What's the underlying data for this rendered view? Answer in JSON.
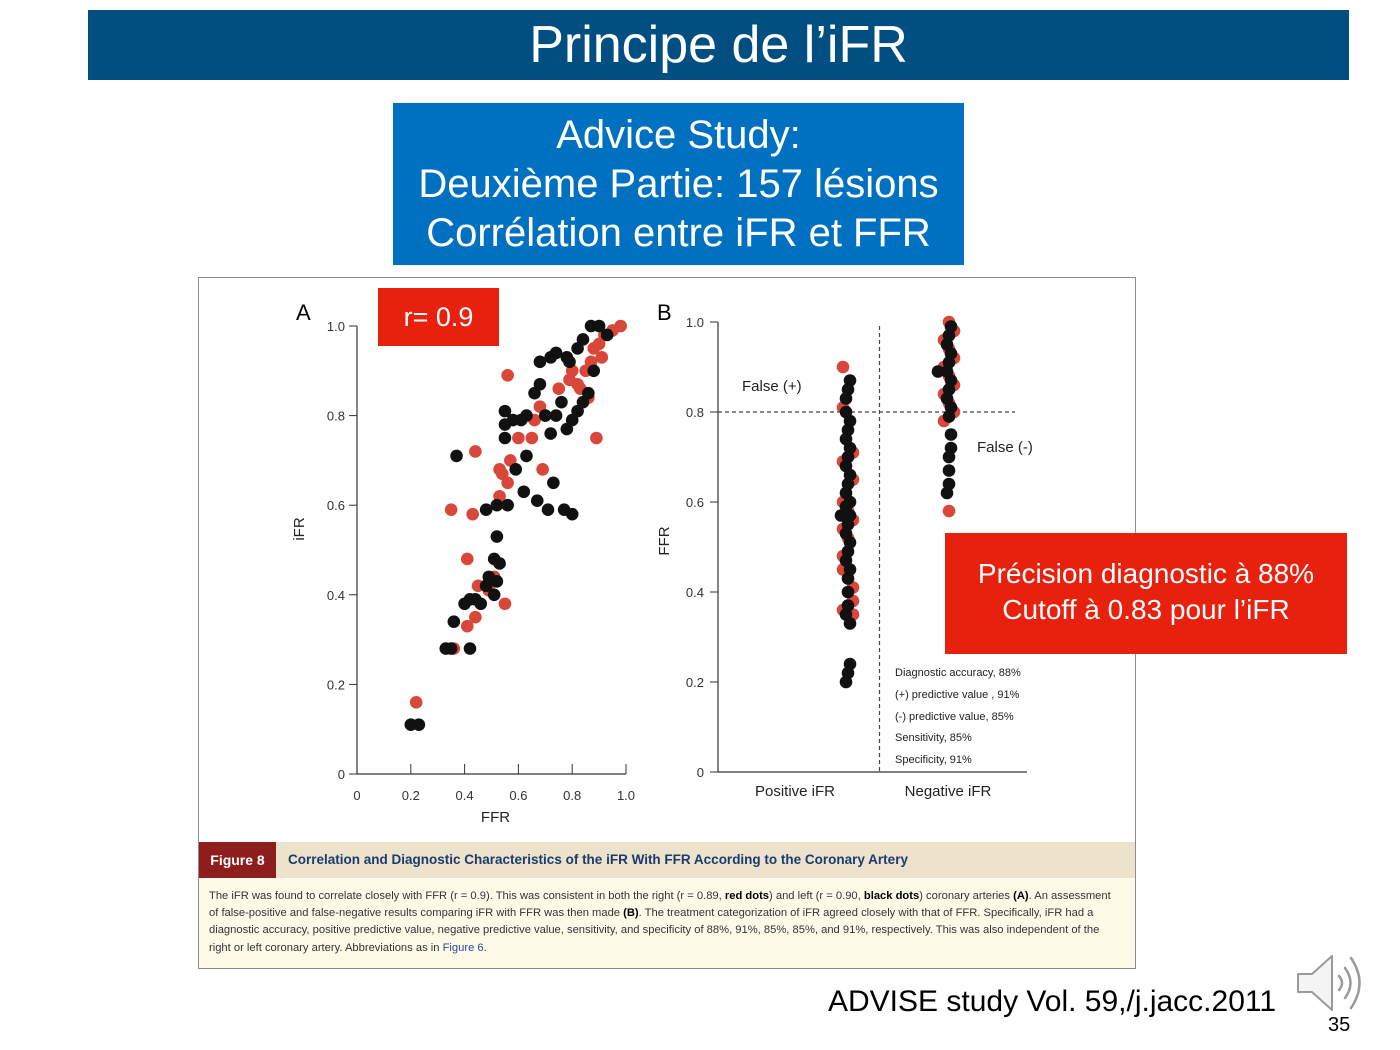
{
  "slide": {
    "title": "Principe  de l’iFR",
    "study_box": {
      "line1": "Advice Study:",
      "line2": "Deuxième Partie: 157 lésions",
      "line3": "Corrélation entre iFR et FFR"
    },
    "r_callout": "r= 0.9",
    "precision_callout": {
      "line1": "Précision diagnostic à 88%",
      "line2": "Cutoff à 0.83 pour l’iFR"
    },
    "citation": "ADVISE study Vol. 59,/j.jacc.2011",
    "page_number": "35",
    "icons": {
      "speaker": "speaker-icon"
    },
    "colors": {
      "title_bar": "#004f80",
      "study_box": "#0070c0",
      "callout_red": "#e8200e",
      "red_dots": "#d9473a",
      "black_dots": "#111111"
    }
  },
  "figure": {
    "caption_tag": "Figure 8",
    "caption_title": "Correlation and Diagnostic Characteristics of the iFR With FFR According to the Coronary Artery",
    "caption_body": {
      "p1": "The iFR was found to correlate closely with FFR (r = 0.9). This was consistent in both the right (r = 0.89, ",
      "red_dots": "red dots",
      "p2": ") and left (r = 0.90, ",
      "black_dots": "black dots",
      "p3": ") coronary arteries ",
      "ref_a": "(A)",
      "p4": ". An assessment of false-positive and false-negative results comparing iFR with FFR was then made ",
      "ref_b": "(B)",
      "p5": ". The treatment categorization of iFR agreed closely with that of FFR. Specifically, iFR had a diagnostic accuracy, positive predictive value, negative predictive value, sensitivity, and specificity of 88%, 91%, 85%, 85%, and 91%, respectively. This was also independent of the right or left coronary artery. Abbreviations as in ",
      "link": "Figure 6",
      "p6": "."
    }
  },
  "chart_data": [
    {
      "type": "scatter",
      "panel_label": "A",
      "xlabel": "FFR",
      "ylabel": "iFR",
      "xlim": [
        0,
        1.0
      ],
      "ylim": [
        0,
        1.0
      ],
      "x_ticks": [
        "0",
        "0.2",
        "0.4",
        "0.6",
        "0.8",
        "1.0"
      ],
      "y_ticks": [
        "0",
        "0.2",
        "0.4",
        "0.6",
        "0.8",
        "1.0"
      ],
      "series": [
        {
          "name": "right coronary (red dots)",
          "color": "#d9473a",
          "points": [
            [
              0.22,
              0.16
            ],
            [
              0.36,
              0.28
            ],
            [
              0.41,
              0.33
            ],
            [
              0.44,
              0.35
            ],
            [
              0.49,
              0.41
            ],
            [
              0.55,
              0.38
            ],
            [
              0.45,
              0.42
            ],
            [
              0.51,
              0.44
            ],
            [
              0.41,
              0.48
            ],
            [
              0.35,
              0.59
            ],
            [
              0.43,
              0.58
            ],
            [
              0.53,
              0.62
            ],
            [
              0.56,
              0.65
            ],
            [
              0.54,
              0.67
            ],
            [
              0.57,
              0.7
            ],
            [
              0.53,
              0.68
            ],
            [
              0.44,
              0.72
            ],
            [
              0.69,
              0.68
            ],
            [
              0.6,
              0.75
            ],
            [
              0.65,
              0.75
            ],
            [
              0.66,
              0.79
            ],
            [
              0.56,
              0.89
            ],
            [
              0.68,
              0.82
            ],
            [
              0.7,
              0.8
            ],
            [
              0.75,
              0.86
            ],
            [
              0.79,
              0.88
            ],
            [
              0.82,
              0.87
            ],
            [
              0.85,
              0.9
            ],
            [
              0.87,
              0.92
            ],
            [
              0.88,
              0.95
            ],
            [
              0.9,
              0.96
            ],
            [
              0.92,
              0.98
            ],
            [
              0.95,
              0.99
            ],
            [
              0.98,
              1.0
            ],
            [
              0.89,
              0.75
            ],
            [
              0.83,
              0.86
            ],
            [
              0.86,
              0.84
            ],
            [
              0.91,
              0.93
            ],
            [
              0.8,
              0.9
            ]
          ]
        },
        {
          "name": "left coronary (black dots)",
          "color": "#111111",
          "points": [
            [
              0.2,
              0.11
            ],
            [
              0.23,
              0.11
            ],
            [
              0.33,
              0.28
            ],
            [
              0.35,
              0.28
            ],
            [
              0.42,
              0.28
            ],
            [
              0.36,
              0.34
            ],
            [
              0.4,
              0.38
            ],
            [
              0.42,
              0.39
            ],
            [
              0.44,
              0.39
            ],
            [
              0.46,
              0.38
            ],
            [
              0.48,
              0.42
            ],
            [
              0.49,
              0.44
            ],
            [
              0.51,
              0.4
            ],
            [
              0.52,
              0.43
            ],
            [
              0.53,
              0.47
            ],
            [
              0.51,
              0.48
            ],
            [
              0.52,
              0.53
            ],
            [
              0.48,
              0.59
            ],
            [
              0.52,
              0.6
            ],
            [
              0.56,
              0.6
            ],
            [
              0.62,
              0.63
            ],
            [
              0.67,
              0.61
            ],
            [
              0.71,
              0.59
            ],
            [
              0.73,
              0.65
            ],
            [
              0.77,
              0.59
            ],
            [
              0.8,
              0.58
            ],
            [
              0.37,
              0.71
            ],
            [
              0.55,
              0.75
            ],
            [
              0.55,
              0.78
            ],
            [
              0.55,
              0.81
            ],
            [
              0.58,
              0.79
            ],
            [
              0.61,
              0.79
            ],
            [
              0.63,
              0.8
            ],
            [
              0.66,
              0.85
            ],
            [
              0.68,
              0.87
            ],
            [
              0.7,
              0.8
            ],
            [
              0.72,
              0.76
            ],
            [
              0.74,
              0.8
            ],
            [
              0.76,
              0.83
            ],
            [
              0.78,
              0.77
            ],
            [
              0.8,
              0.79
            ],
            [
              0.82,
              0.81
            ],
            [
              0.84,
              0.83
            ],
            [
              0.86,
              0.85
            ],
            [
              0.68,
              0.92
            ],
            [
              0.72,
              0.93
            ],
            [
              0.74,
              0.94
            ],
            [
              0.78,
              0.93
            ],
            [
              0.82,
              0.95
            ],
            [
              0.84,
              0.97
            ],
            [
              0.87,
              1.0
            ],
            [
              0.9,
              1.0
            ],
            [
              0.93,
              0.98
            ],
            [
              0.88,
              0.9
            ],
            [
              0.63,
              0.71
            ],
            [
              0.59,
              0.68
            ],
            [
              0.79,
              0.92
            ]
          ]
        }
      ]
    },
    {
      "type": "scatter",
      "panel_label": "B",
      "ylabel": "FFR",
      "ylim": [
        0,
        1.0
      ],
      "y_ticks": [
        "0",
        "0.2",
        "0.4",
        "0.6",
        "0.8",
        "1.0"
      ],
      "categories": [
        "Positive iFR",
        "Negative iFR"
      ],
      "reference_lines": {
        "ffr_cutoff": 0.8
      },
      "annotations": {
        "false_positive": "False (+)",
        "false_negative": "False (-)"
      },
      "stats": [
        "Diagnostic accuracy,  88%",
        "(+) predictive value , 91%",
        "(-)  predictive value, 85%",
        "Sensitivity, 85%",
        "Specificity, 91%"
      ],
      "series": [
        {
          "name": "red dots",
          "color": "#d9473a",
          "points": [
            [
              0,
              0.9
            ],
            [
              0,
              0.81
            ],
            [
              0,
              0.71
            ],
            [
              0,
              0.69
            ],
            [
              0,
              0.65
            ],
            [
              0,
              0.6
            ],
            [
              0,
              0.58
            ],
            [
              0,
              0.56
            ],
            [
              0,
              0.54
            ],
            [
              0,
              0.52
            ],
            [
              0,
              0.48
            ],
            [
              0,
              0.45
            ],
            [
              0,
              0.41
            ],
            [
              0,
              0.38
            ],
            [
              0,
              0.36
            ],
            [
              0,
              0.35
            ],
            [
              1,
              1.0
            ],
            [
              1,
              0.98
            ],
            [
              1,
              0.96
            ],
            [
              1,
              0.94
            ],
            [
              1,
              0.92
            ],
            [
              1,
              0.9
            ],
            [
              1,
              0.88
            ],
            [
              1,
              0.86
            ],
            [
              1,
              0.84
            ],
            [
              1,
              0.82
            ],
            [
              1,
              0.8
            ],
            [
              1,
              0.78
            ],
            [
              1,
              0.58
            ]
          ]
        },
        {
          "name": "black dots",
          "color": "#111111",
          "points": [
            [
              0,
              0.87
            ],
            [
              0,
              0.85
            ],
            [
              0,
              0.83
            ],
            [
              0,
              0.8
            ],
            [
              0,
              0.78
            ],
            [
              0,
              0.76
            ],
            [
              0,
              0.74
            ],
            [
              0,
              0.72
            ],
            [
              0,
              0.7
            ],
            [
              0,
              0.68
            ],
            [
              0,
              0.66
            ],
            [
              0,
              0.64
            ],
            [
              0,
              0.62
            ],
            [
              0,
              0.6
            ],
            [
              0,
              0.59
            ],
            [
              0,
              0.57
            ],
            [
              0,
              0.57
            ],
            [
              0,
              0.55
            ],
            [
              0,
              0.53
            ],
            [
              0,
              0.51
            ],
            [
              0,
              0.49
            ],
            [
              0,
              0.47
            ],
            [
              0,
              0.45
            ],
            [
              0,
              0.43
            ],
            [
              0,
              0.4
            ],
            [
              0,
              0.37
            ],
            [
              0,
              0.35
            ],
            [
              0,
              0.33
            ],
            [
              0,
              0.24
            ],
            [
              0,
              0.22
            ],
            [
              0,
              0.2
            ],
            [
              1,
              0.99
            ],
            [
              1,
              0.97
            ],
            [
              1,
              0.95
            ],
            [
              1,
              0.93
            ],
            [
              1,
              0.91
            ],
            [
              1,
              0.89
            ],
            [
              1,
              0.89
            ],
            [
              1,
              0.87
            ],
            [
              1,
              0.85
            ],
            [
              1,
              0.83
            ],
            [
              1,
              0.81
            ],
            [
              1,
              0.79
            ],
            [
              1,
              0.75
            ],
            [
              1,
              0.72
            ],
            [
              1,
              0.7
            ],
            [
              1,
              0.67
            ],
            [
              1,
              0.64
            ],
            [
              1,
              0.62
            ]
          ]
        }
      ]
    }
  ]
}
